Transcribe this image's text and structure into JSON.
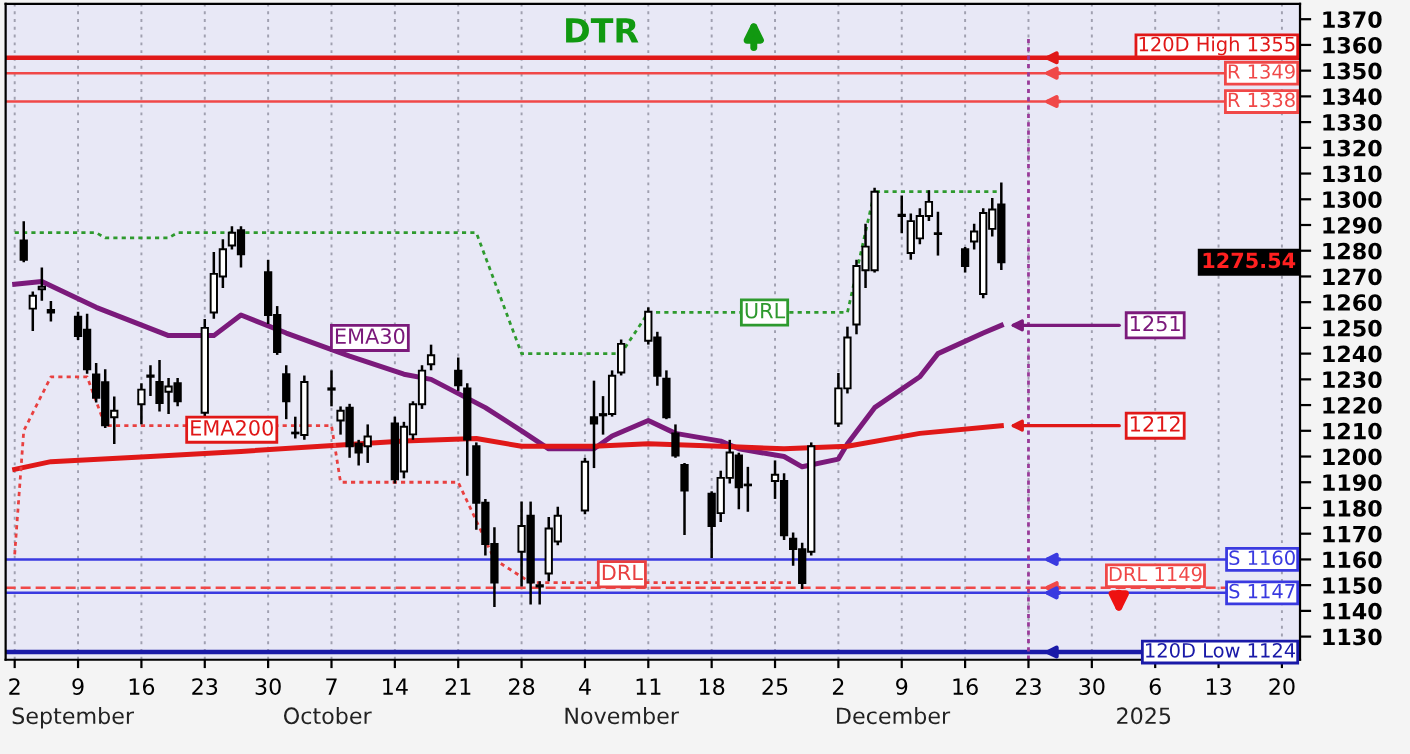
{
  "chart_data": {
    "type": "candlestick",
    "title": "DTR",
    "x": [
      "2024-09-03",
      "2024-09-04",
      "2024-09-05",
      "2024-09-06",
      "2024-09-09",
      "2024-09-10",
      "2024-09-11",
      "2024-09-12",
      "2024-09-13",
      "2024-09-16",
      "2024-09-17",
      "2024-09-18",
      "2024-09-19",
      "2024-09-20",
      "2024-09-23",
      "2024-09-24",
      "2024-09-25",
      "2024-09-26",
      "2024-09-27",
      "2024-09-30",
      "2024-10-01",
      "2024-10-02",
      "2024-10-03",
      "2024-10-04",
      "2024-10-07",
      "2024-10-08",
      "2024-10-09",
      "2024-10-10",
      "2024-10-11",
      "2024-10-14",
      "2024-10-15",
      "2024-10-16",
      "2024-10-17",
      "2024-10-18",
      "2024-10-21",
      "2024-10-22",
      "2024-10-23",
      "2024-10-24",
      "2024-10-25",
      "2024-10-28",
      "2024-10-29",
      "2024-10-30",
      "2024-10-31",
      "2024-11-01",
      "2024-11-04",
      "2024-11-05",
      "2024-11-06",
      "2024-11-07",
      "2024-11-08",
      "2024-11-11",
      "2024-11-12",
      "2024-11-13",
      "2024-11-14",
      "2024-11-15",
      "2024-11-18",
      "2024-11-19",
      "2024-11-20",
      "2024-11-21",
      "2024-11-22",
      "2024-11-25",
      "2024-11-26",
      "2024-11-27",
      "2024-11-28",
      "2024-11-29",
      "2024-12-02",
      "2024-12-03",
      "2024-12-04",
      "2024-12-05",
      "2024-12-06",
      "2024-12-09",
      "2024-12-10",
      "2024-12-11",
      "2024-12-12",
      "2024-12-13",
      "2024-12-16",
      "2024-12-17",
      "2024-12-18",
      "2024-12-19",
      "2024-12-20"
    ],
    "ohlc": [
      [
        1284,
        1291,
        1276,
        1276.5
      ],
      [
        1257.5,
        1263.7,
        1249.3,
        1262.5
      ],
      [
        1265,
        1273,
        1261,
        1266
      ],
      [
        1257,
        1260,
        1253,
        1256
      ],
      [
        1254.3,
        1255.8,
        1245.8,
        1246.8
      ],
      [
        1249.3,
        1255,
        1232.7,
        1233.9
      ],
      [
        1231.9,
        1235.9,
        1221.5,
        1222.8
      ],
      [
        1228.9,
        1233.4,
        1211.6,
        1212.1
      ],
      [
        1215.3,
        1222.8,
        1205.4,
        1217.8
      ],
      [
        1220.3,
        1228,
        1213,
        1226
      ],
      [
        1231.5,
        1235,
        1224,
        1231
      ],
      [
        1229,
        1237,
        1218,
        1220.8
      ],
      [
        1225.2,
        1230,
        1217,
        1227.2
      ],
      [
        1228.5,
        1230,
        1220,
        1221.5
      ],
      [
        1217,
        1253,
        1216,
        1250
      ],
      [
        1256,
        1279,
        1254,
        1271
      ],
      [
        1270,
        1284,
        1266,
        1280.6
      ],
      [
        1282,
        1289,
        1281,
        1287
      ],
      [
        1288,
        1289,
        1274,
        1278.6
      ],
      [
        1271.6,
        1276,
        1252,
        1255
      ],
      [
        1255,
        1258,
        1240,
        1240.6
      ],
      [
        1232,
        1235,
        1215,
        1221.5
      ],
      [
        1209.3,
        1215,
        1207.5,
        1209
      ],
      [
        1208.4,
        1231,
        1207,
        1229
      ],
      [
        1226.5,
        1233,
        1220,
        1226
      ],
      [
        1214,
        1219,
        1209,
        1217.8
      ],
      [
        1219,
        1220,
        1200,
        1204
      ],
      [
        1205,
        1206,
        1197,
        1201.6
      ],
      [
        1204,
        1212,
        1198,
        1207.8
      ],
      [
        1212.8,
        1215,
        1190,
        1191.2
      ],
      [
        1194.2,
        1213,
        1192,
        1211.6
      ],
      [
        1208.6,
        1221,
        1207,
        1220.3
      ],
      [
        1220.3,
        1235,
        1219,
        1233.4
      ],
      [
        1235.9,
        1243,
        1234,
        1239.4
      ],
      [
        1233.4,
        1238,
        1226,
        1227.7
      ],
      [
        1226.5,
        1228,
        1193,
        1206.6
      ],
      [
        1204,
        1205,
        1172,
        1182
      ],
      [
        1182,
        1183,
        1162,
        1166
      ],
      [
        1166,
        1172,
        1142,
        1151
      ],
      [
        1163,
        1182,
        1150,
        1173
      ],
      [
        1177,
        1182,
        1143,
        1151
      ],
      [
        1150,
        1151,
        1143,
        1149.5
      ],
      [
        1154.5,
        1176,
        1152,
        1172
      ],
      [
        1167,
        1180,
        1166,
        1177
      ],
      [
        1179,
        1199,
        1178,
        1198
      ],
      [
        1215.3,
        1229,
        1196,
        1212.8
      ],
      [
        1216.5,
        1223,
        1209,
        1216
      ],
      [
        1216.5,
        1233,
        1216,
        1231.4
      ],
      [
        1232.7,
        1245,
        1232,
        1243.8
      ],
      [
        1245,
        1257.5,
        1244,
        1256.3
      ],
      [
        1246.3,
        1248,
        1228,
        1231.4
      ],
      [
        1230.2,
        1233,
        1215,
        1215.3
      ],
      [
        1209,
        1212,
        1200,
        1200.4
      ],
      [
        1196.7,
        1197,
        1170,
        1186.8
      ],
      [
        1185.5,
        1186,
        1161,
        1173
      ],
      [
        1178,
        1194,
        1175,
        1191.7
      ],
      [
        1191.7,
        1206,
        1190,
        1201.6
      ],
      [
        1200.4,
        1201,
        1180,
        1188
      ],
      [
        1189,
        1195.5,
        1179,
        1188.8
      ],
      [
        1190.5,
        1198,
        1184,
        1192.9
      ],
      [
        1190.5,
        1193,
        1168,
        1169.4
      ],
      [
        1168,
        1170,
        1158,
        1164
      ],
      [
        1164,
        1166,
        1149,
        1150.8
      ],
      [
        1163,
        1205,
        1162,
        1204
      ],
      [
        1212.8,
        1232,
        1212,
        1226.5
      ],
      [
        1226.5,
        1250,
        1225,
        1246.3
      ],
      [
        1251.3,
        1276,
        1248,
        1274.1
      ],
      [
        1272.4,
        1290,
        1266,
        1281.6
      ],
      [
        1272.4,
        1304,
        1272,
        1302.9
      ],
      [
        1294,
        1301,
        1287.3,
        1293.5
      ],
      [
        1279.1,
        1294,
        1277,
        1291.5
      ],
      [
        1284.8,
        1296,
        1283,
        1293.5
      ],
      [
        1293.5,
        1303,
        1292,
        1299
      ],
      [
        1286.7,
        1294.7,
        1278.6,
        1286.5
      ],
      [
        1280.6,
        1281,
        1272,
        1274.1
      ],
      [
        1283.6,
        1290,
        1281,
        1287.5
      ],
      [
        1263.2,
        1296,
        1262,
        1294.7
      ],
      [
        1288.5,
        1300,
        1286,
        1296
      ],
      [
        1298,
        1306,
        1273,
        1275.54
      ]
    ],
    "series": [
      {
        "name": "EMA30",
        "type": "line",
        "color": "#7b1a7b",
        "line_style": "solid",
        "x": [
          "2024-09-02",
          "2024-09-05",
          "2024-09-11",
          "2024-09-19",
          "2024-09-24",
          "2024-09-27",
          "2024-10-02",
          "2024-10-09",
          "2024-10-15",
          "2024-10-18",
          "2024-10-24",
          "2024-10-28",
          "2024-10-31",
          "2024-11-05",
          "2024-11-07",
          "2024-11-11",
          "2024-11-14",
          "2024-11-19",
          "2024-11-21",
          "2024-11-26",
          "2024-11-28",
          "2024-12-02",
          "2024-12-03",
          "2024-12-06",
          "2024-12-11",
          "2024-12-13",
          "2024-12-18",
          "2024-12-20"
        ],
        "values": [
          1267,
          1268,
          1258,
          1247,
          1247,
          1255,
          1248,
          1239,
          1232,
          1230,
          1219,
          1210,
          1203,
          1203,
          1208,
          1214,
          1209,
          1206,
          1203,
          1200,
          1196,
          1199,
          1205,
          1219,
          1231,
          1240,
          1248,
          1251
        ],
        "value_labels": [
          null,
          null,
          null,
          null,
          null,
          null,
          null,
          null,
          null,
          null,
          null,
          null,
          null,
          null,
          null,
          null,
          null,
          null,
          null,
          null,
          null,
          null,
          null,
          null,
          null,
          null,
          null,
          "1251"
        ]
      },
      {
        "name": "EMA200",
        "type": "line",
        "color": "#e01818",
        "line_style": "solid",
        "x": [
          "2024-09-02",
          "2024-09-06",
          "2024-09-17",
          "2024-09-27",
          "2024-10-15",
          "2024-10-23",
          "2024-10-28",
          "2024-11-05",
          "2024-11-11",
          "2024-11-19",
          "2024-11-26",
          "2024-12-03",
          "2024-12-11",
          "2024-12-20"
        ],
        "values": [
          1195,
          1198,
          1200,
          1202,
          1206,
          1207,
          1204,
          1204,
          1205,
          1204,
          1203,
          1204,
          1209,
          1212
        ],
        "value_labels": [
          null,
          null,
          null,
          null,
          null,
          null,
          null,
          null,
          null,
          null,
          null,
          null,
          null,
          "1212"
        ]
      },
      {
        "name": "URL",
        "type": "line",
        "color": "#2e9a2e",
        "line_style": "dotted",
        "x": [
          "2024-09-02",
          "2024-09-11",
          "2024-09-12",
          "2024-09-19",
          "2024-09-20",
          "2024-10-23",
          "2024-10-28",
          "2024-11-08",
          "2024-11-11",
          "2024-12-03",
          "2024-12-06",
          "2024-12-20"
        ],
        "values": [
          1287,
          1287,
          1285,
          1285,
          1287,
          1287,
          1240,
          1240,
          1256,
          1256,
          1303,
          1303
        ]
      },
      {
        "name": "DRL",
        "type": "line",
        "color": "#e84040",
        "line_style": "dotted",
        "x": [
          "2024-09-02",
          "2024-09-03",
          "2024-09-06",
          "2024-09-10",
          "2024-09-12",
          "2024-10-07",
          "2024-10-08",
          "2024-10-21",
          "2024-10-25",
          "2024-10-29",
          "2024-11-27"
        ],
        "values": [
          1162,
          1210,
          1231,
          1231,
          1212,
          1212,
          1190,
          1190,
          1160,
          1151,
          1151
        ]
      }
    ],
    "ref_lines": [
      {
        "axis": "y",
        "value": 1355,
        "label": "120D High 1355",
        "color": "#e01818",
        "line_style": "solid"
      },
      {
        "axis": "y",
        "value": 1349,
        "label": "R 1349",
        "color": "#f04848",
        "line_style": "solid"
      },
      {
        "axis": "y",
        "value": 1338,
        "label": "R 1338",
        "color": "#f04848",
        "line_style": "solid"
      },
      {
        "axis": "y",
        "value": 1160,
        "label": "S 1160",
        "color": "#3a3ae0",
        "line_style": "solid"
      },
      {
        "axis": "y",
        "value": 1149,
        "label": "DRL 1149",
        "color": "#f04848",
        "line_style": "dashed"
      },
      {
        "axis": "y",
        "value": 1147,
        "label": "S 1147",
        "color": "#3a3ae0",
        "line_style": "solid"
      },
      {
        "axis": "y",
        "value": 1124,
        "label": "120D Low 1124",
        "color": "#1a1aa8",
        "line_style": "solid"
      },
      {
        "axis": "x",
        "value": "2024-12-23",
        "color": "#9a3a9a",
        "line_style": "dotted"
      }
    ],
    "annotations": [
      "1275.54",
      "September",
      "October",
      "November",
      "December",
      "2025"
    ],
    "xlim": [
      "2024-09-01",
      "2025-01-22"
    ],
    "xticks": [
      {
        "value": "2024-09-02",
        "label": "2"
      },
      {
        "value": "2024-09-09",
        "label": "9"
      },
      {
        "value": "2024-09-16",
        "label": "16"
      },
      {
        "value": "2024-09-23",
        "label": "23"
      },
      {
        "value": "2024-09-30",
        "label": "30"
      },
      {
        "value": "2024-10-07",
        "label": "7"
      },
      {
        "value": "2024-10-14",
        "label": "14"
      },
      {
        "value": "2024-10-21",
        "label": "21"
      },
      {
        "value": "2024-10-28",
        "label": "28"
      },
      {
        "value": "2024-11-04",
        "label": "4"
      },
      {
        "value": "2024-11-11",
        "label": "11"
      },
      {
        "value": "2024-11-18",
        "label": "18"
      },
      {
        "value": "2024-11-25",
        "label": "25"
      },
      {
        "value": "2024-12-02",
        "label": "2"
      },
      {
        "value": "2024-12-09",
        "label": "9"
      },
      {
        "value": "2024-12-16",
        "label": "16"
      },
      {
        "value": "2024-12-23",
        "label": "23"
      },
      {
        "value": "2024-12-30",
        "label": "30"
      },
      {
        "value": "2025-01-06",
        "label": "6"
      },
      {
        "value": "2025-01-13",
        "label": "13"
      },
      {
        "value": "2025-01-20",
        "label": "20"
      }
    ],
    "ylim": [
      1121,
      1376
    ],
    "yticks": [
      1130,
      1140,
      1150,
      1160,
      1170,
      1180,
      1190,
      1200,
      1210,
      1220,
      1230,
      1240,
      1250,
      1260,
      1270,
      1280,
      1290,
      1300,
      1310,
      1320,
      1330,
      1340,
      1350,
      1360,
      1370
    ],
    "grid": "x",
    "legend": false
  }
}
